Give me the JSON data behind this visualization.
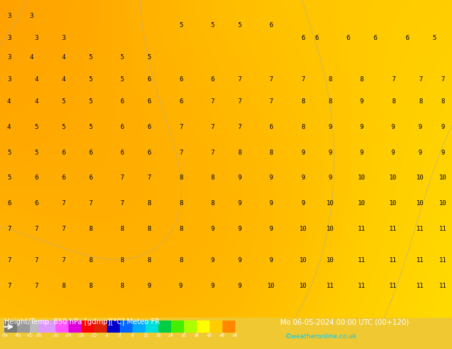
{
  "title_left": "Height/Temp. 850 hPa [gdmp][°C] Meteo FR",
  "title_right": "Mo 06-05-2024 00:00 UTC (00+120)",
  "credit": "©weatheronline.co.uk",
  "colorbar_values": [
    -54,
    -48,
    -42,
    -38,
    -30,
    -24,
    -18,
    -12,
    -6,
    0,
    6,
    12,
    18,
    24,
    30,
    36,
    42,
    48,
    54
  ],
  "colorbar_label": "-54-48-42-38-30-24-18-12-6 0  6 12 18 24 30 36 42 48 54",
  "background_color": "#f0c832",
  "bottom_bar_bg": "#1a1a1a",
  "title_color": "#ffffff",
  "credit_color": "#00ccff",
  "map_bg_colors": [
    "#ffdd00",
    "#ffcc00",
    "#ffaa00",
    "#ff8800"
  ],
  "colorbar_colors": [
    "#8c8c8c",
    "#aaaaaa",
    "#cccccc",
    "#eeeeee",
    "#cc88ff",
    "#ff44ff",
    "#ff0000",
    "#0000ff",
    "#0044ff",
    "#0088ff",
    "#00aaff",
    "#00ccff",
    "#00ff88",
    "#00ff00",
    "#88ff00",
    "#ffff00",
    "#ffcc00",
    "#ff8800",
    "#ff4400",
    "#cc2200"
  ],
  "colorbar_boundaries": [
    -54,
    -48,
    -42,
    -38,
    -30,
    -24,
    -18,
    -12,
    -6,
    0,
    6,
    12,
    18,
    24,
    30,
    36,
    42,
    48,
    54
  ],
  "figsize": [
    6.34,
    4.9
  ],
  "dpi": 100
}
